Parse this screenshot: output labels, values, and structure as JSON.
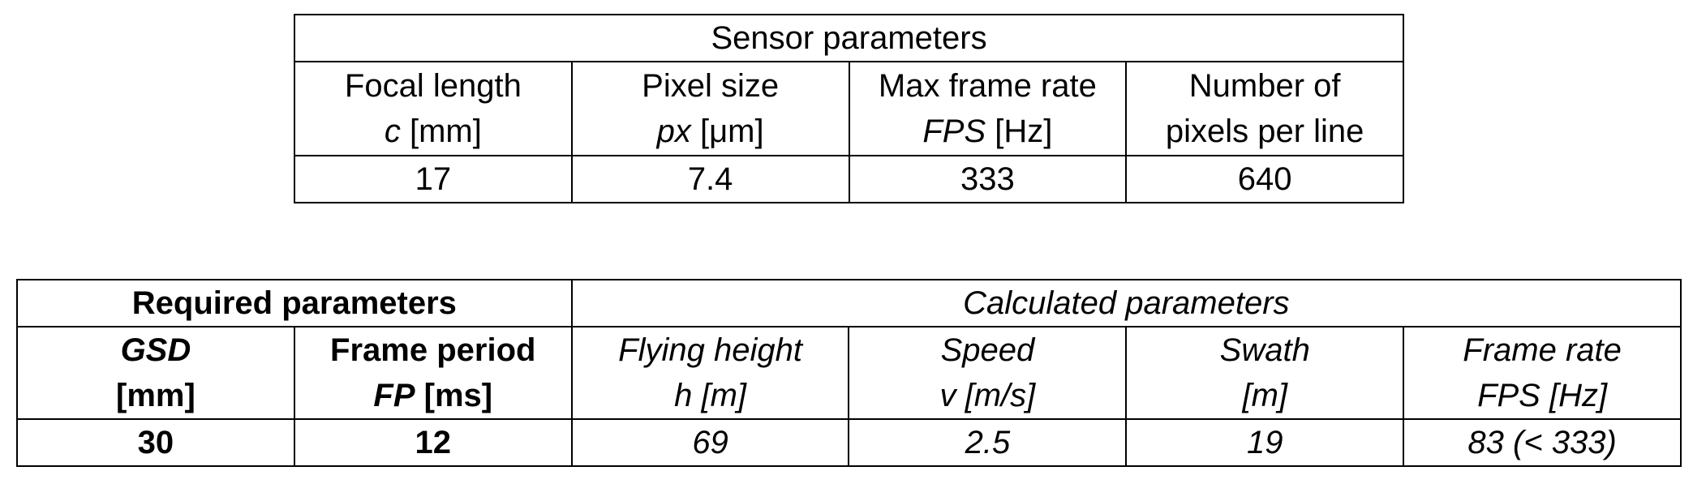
{
  "sensor_table": {
    "title": "Sensor parameters",
    "columns": [
      {
        "name_line": "Focal length",
        "symbol": "c",
        "unit": " [mm]"
      },
      {
        "name_line": "Pixel size",
        "symbol": "px",
        "unit": " [μm]"
      },
      {
        "name_line": "Max frame rate",
        "symbol": "FPS",
        "unit": " [Hz]"
      },
      {
        "name_line": "Number of",
        "symbol": "",
        "unit": "pixels per line"
      }
    ],
    "values": [
      "17",
      "7.4",
      "333",
      "640"
    ]
  },
  "params_table": {
    "required_title": "Required parameters",
    "calculated_title": "Calculated parameters",
    "required_columns": [
      {
        "line1": "GSD",
        "symbol": "",
        "line2": "[mm]"
      },
      {
        "line1": "Frame period",
        "symbol": "FP",
        "line2": " [ms]"
      }
    ],
    "calculated_columns": [
      {
        "line1": "Flying height",
        "line2": "h [m]"
      },
      {
        "line1": "Speed",
        "line2": "v [m/s]"
      },
      {
        "line1": "Swath",
        "line2": "[m]"
      },
      {
        "line1": "Frame rate",
        "line2": "FPS [Hz]"
      }
    ],
    "required_values": [
      "30",
      "12"
    ],
    "calculated_values": [
      "69",
      "2.5",
      "19",
      "83 (< 333)"
    ]
  }
}
